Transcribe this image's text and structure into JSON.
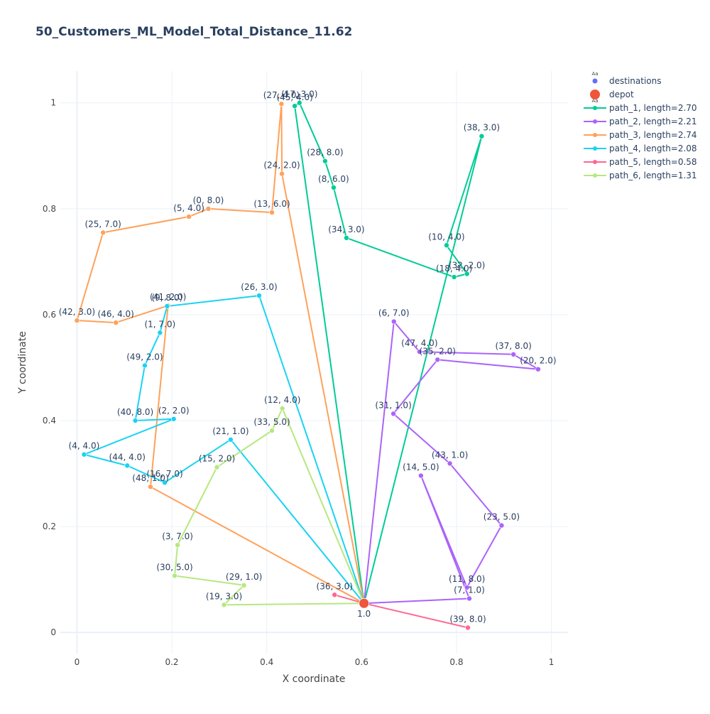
{
  "chart_data": {
    "type": "line",
    "title": "50_Customers_ML_Model_Total_Distance_11.62",
    "xlabel": "X coordinate",
    "ylabel": "Y coordinate",
    "xlim": [
      -0.035,
      1.035
    ],
    "ylim": [
      -0.04,
      1.06
    ],
    "xticks": [
      0,
      0.2,
      0.4,
      0.6,
      0.8,
      1
    ],
    "xtick_labels": [
      "0",
      "0.2",
      "0.4",
      "0.6",
      "0.8",
      "1"
    ],
    "yticks": [
      0,
      0.2,
      0.4,
      0.6,
      0.8,
      1
    ],
    "ytick_labels": [
      "0",
      "0.2",
      "0.4",
      "0.6",
      "0.8",
      "1"
    ],
    "grid": true,
    "legend_position": "top-right",
    "depot": {
      "name": "depot",
      "x": 0.605,
      "y": 0.055,
      "label": "1.0",
      "color": "#EF553B"
    },
    "destinations_legend": {
      "name": "destinations",
      "color": "#636EFA"
    },
    "series": [
      {
        "name": "path_1, length=2.70",
        "color": "#00CC96",
        "points": [
          {
            "x": 0.605,
            "y": 0.055,
            "label": ""
          },
          {
            "x": 0.853,
            "y": 0.937,
            "label": "(38, 3.0)"
          },
          {
            "x": 0.779,
            "y": 0.731,
            "label": "(10, 4.0)"
          },
          {
            "x": 0.822,
            "y": 0.677,
            "label": "(32, 2.0)"
          },
          {
            "x": 0.795,
            "y": 0.671,
            "label": "(18, 4.0)"
          },
          {
            "x": 0.568,
            "y": 0.745,
            "label": "(34, 3.0)"
          },
          {
            "x": 0.541,
            "y": 0.84,
            "label": "(8, 6.0)"
          },
          {
            "x": 0.523,
            "y": 0.89,
            "label": "(28, 8.0)"
          },
          {
            "x": 0.469,
            "y": 1.0,
            "label": "(17, 3.0)"
          },
          {
            "x": 0.459,
            "y": 0.994,
            "label": "(45, 4.0)"
          },
          {
            "x": 0.605,
            "y": 0.055,
            "label": ""
          }
        ]
      },
      {
        "name": "path_2, length=2.21",
        "color": "#AB63FA",
        "points": [
          {
            "x": 0.605,
            "y": 0.055,
            "label": ""
          },
          {
            "x": 0.827,
            "y": 0.064,
            "label": "(7, 1.0)"
          },
          {
            "x": 0.725,
            "y": 0.296,
            "label": "(14, 5.0)"
          },
          {
            "x": 0.822,
            "y": 0.085,
            "label": "(11, 8.0)"
          },
          {
            "x": 0.822,
            "y": 0.085,
            "label": ""
          },
          {
            "x": 0.895,
            "y": 0.202,
            "label": "(23, 5.0)"
          },
          {
            "x": 0.786,
            "y": 0.319,
            "label": "(43, 1.0)"
          },
          {
            "x": 0.667,
            "y": 0.413,
            "label": "(31, 1.0)"
          },
          {
            "x": 0.76,
            "y": 0.515,
            "label": "(35, 2.0)"
          },
          {
            "x": 0.972,
            "y": 0.497,
            "label": "(20, 2.0)"
          },
          {
            "x": 0.92,
            "y": 0.525,
            "label": "(37, 8.0)"
          },
          {
            "x": 0.722,
            "y": 0.53,
            "label": "(47, 4.0)"
          },
          {
            "x": 0.668,
            "y": 0.587,
            "label": "(6, 7.0)"
          },
          {
            "x": 0.605,
            "y": 0.055,
            "label": ""
          }
        ]
      },
      {
        "name": "path_3, length=2.74",
        "color": "#FFA15A",
        "points": [
          {
            "x": 0.605,
            "y": 0.055,
            "label": ""
          },
          {
            "x": 0.155,
            "y": 0.275,
            "label": "(48, 1.0)"
          },
          {
            "x": 0.192,
            "y": 0.617,
            "label": "(41, 2.0)"
          },
          {
            "x": 0.082,
            "y": 0.585,
            "label": "(46, 4.0)"
          },
          {
            "x": 0.0,
            "y": 0.589,
            "label": "(42, 3.0)"
          },
          {
            "x": 0.055,
            "y": 0.755,
            "label": "(25, 7.0)"
          },
          {
            "x": 0.236,
            "y": 0.785,
            "label": "(5, 4.0)"
          },
          {
            "x": 0.277,
            "y": 0.8,
            "label": "(0, 8.0)"
          },
          {
            "x": 0.411,
            "y": 0.793,
            "label": "(13, 6.0)"
          },
          {
            "x": 0.431,
            "y": 0.998,
            "label": "(27, 4.0)"
          },
          {
            "x": 0.432,
            "y": 0.866,
            "label": "(24, 2.0)"
          },
          {
            "x": 0.605,
            "y": 0.055,
            "label": ""
          }
        ]
      },
      {
        "name": "path_4, length=2.08",
        "color": "#19D3F3",
        "points": [
          {
            "x": 0.605,
            "y": 0.055,
            "label": ""
          },
          {
            "x": 0.324,
            "y": 0.364,
            "label": "(21, 1.0)"
          },
          {
            "x": 0.185,
            "y": 0.283,
            "label": "(16, 7.0)"
          },
          {
            "x": 0.106,
            "y": 0.315,
            "label": "(44, 4.0)"
          },
          {
            "x": 0.015,
            "y": 0.336,
            "label": "(4, 4.0)"
          },
          {
            "x": 0.204,
            "y": 0.403,
            "label": "(2, 2.0)"
          },
          {
            "x": 0.123,
            "y": 0.4,
            "label": "(40, 8.0)"
          },
          {
            "x": 0.143,
            "y": 0.504,
            "label": "(49, 2.0)"
          },
          {
            "x": 0.175,
            "y": 0.566,
            "label": "(1, 7.0)"
          },
          {
            "x": 0.19,
            "y": 0.616,
            "label": "(9, 8.0)"
          },
          {
            "x": 0.384,
            "y": 0.636,
            "label": "(26, 3.0)"
          },
          {
            "x": 0.605,
            "y": 0.055,
            "label": ""
          }
        ]
      },
      {
        "name": "path_5, length=0.58",
        "color": "#FF6692",
        "points": [
          {
            "x": 0.605,
            "y": 0.055,
            "label": ""
          },
          {
            "x": 0.543,
            "y": 0.071,
            "label": "(36, 3.0)"
          },
          {
            "x": 0.605,
            "y": 0.055,
            "label": ""
          },
          {
            "x": 0.824,
            "y": 0.009,
            "label": "(39, 8.0)"
          },
          {
            "x": 0.605,
            "y": 0.055,
            "label": ""
          }
        ]
      },
      {
        "name": "path_6, length=1.31",
        "color": "#B6E880",
        "points": [
          {
            "x": 0.605,
            "y": 0.055,
            "label": ""
          },
          {
            "x": 0.31,
            "y": 0.052,
            "label": "(19, 3.0)"
          },
          {
            "x": 0.352,
            "y": 0.089,
            "label": "(29, 1.0)"
          },
          {
            "x": 0.206,
            "y": 0.107,
            "label": "(30, 5.0)"
          },
          {
            "x": 0.212,
            "y": 0.165,
            "label": "(3, 7.0)"
          },
          {
            "x": 0.295,
            "y": 0.312,
            "label": "(15, 2.0)"
          },
          {
            "x": 0.411,
            "y": 0.381,
            "label": "(33, 5.0)"
          },
          {
            "x": 0.433,
            "y": 0.423,
            "label": "(12, 4.0)"
          },
          {
            "x": 0.605,
            "y": 0.055,
            "label": ""
          }
        ]
      }
    ]
  }
}
